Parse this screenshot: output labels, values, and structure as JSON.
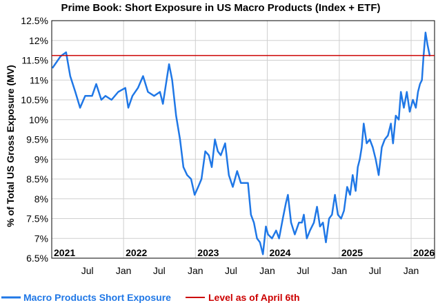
{
  "chart_data": {
    "type": "line",
    "title": "Prime Book: Short Exposure in US Macro Products (Index + ETF)",
    "ylabel": "% of Total US Gross Exposure (MV)",
    "xlabel": "",
    "ylim": [
      6.5,
      12.5
    ],
    "xlim": [
      "2021-01-01",
      "2026-04-30"
    ],
    "y_ticks": [
      "6.5%",
      "7%",
      "7.5%",
      "8%",
      "8.5%",
      "9%",
      "9.5%",
      "10%",
      "10.5%",
      "11%",
      "11.5%",
      "12%",
      "12.5%"
    ],
    "year_labels": [
      "2021",
      "2022",
      "2023",
      "2024",
      "2025",
      "2026"
    ],
    "month_labels": [
      "Jul",
      "Jan",
      "Jul",
      "Jan",
      "Jul",
      "Jan",
      "Jul",
      "Jan",
      "Jul",
      "Jan"
    ],
    "grid": true,
    "legend_position": "bottom",
    "series": [
      {
        "name": "Macro Products Short Exposure",
        "color": "#1f77e6",
        "points": [
          [
            "2021-01-04",
            11.3
          ],
          [
            "2021-02-15",
            11.6
          ],
          [
            "2021-03-15",
            11.7
          ],
          [
            "2021-04-05",
            11.1
          ],
          [
            "2021-05-01",
            10.7
          ],
          [
            "2021-05-25",
            10.3
          ],
          [
            "2021-06-20",
            10.6
          ],
          [
            "2021-07-25",
            10.6
          ],
          [
            "2021-08-15",
            10.9
          ],
          [
            "2021-09-10",
            10.5
          ],
          [
            "2021-10-01",
            10.6
          ],
          [
            "2021-11-01",
            10.5
          ],
          [
            "2021-12-05",
            10.7
          ],
          [
            "2022-01-10",
            10.8
          ],
          [
            "2022-01-25",
            10.3
          ],
          [
            "2022-02-15",
            10.6
          ],
          [
            "2022-03-15",
            10.8
          ],
          [
            "2022-04-10",
            11.1
          ],
          [
            "2022-05-05",
            10.7
          ],
          [
            "2022-06-05",
            10.6
          ],
          [
            "2022-07-05",
            10.7
          ],
          [
            "2022-07-20",
            10.4
          ],
          [
            "2022-08-20",
            11.4
          ],
          [
            "2022-09-05",
            11.0
          ],
          [
            "2022-09-25",
            10.1
          ],
          [
            "2022-10-15",
            9.5
          ],
          [
            "2022-11-01",
            8.8
          ],
          [
            "2022-11-20",
            8.6
          ],
          [
            "2022-12-10",
            8.5
          ],
          [
            "2022-12-28",
            8.1
          ],
          [
            "2023-01-15",
            8.3
          ],
          [
            "2023-02-01",
            8.5
          ],
          [
            "2023-02-20",
            9.2
          ],
          [
            "2023-03-10",
            9.1
          ],
          [
            "2023-03-25",
            8.8
          ],
          [
            "2023-04-10",
            9.5
          ],
          [
            "2023-04-25",
            9.2
          ],
          [
            "2023-05-10",
            9.1
          ],
          [
            "2023-06-01",
            9.4
          ],
          [
            "2023-06-20",
            8.6
          ],
          [
            "2023-07-10",
            8.3
          ],
          [
            "2023-08-01",
            8.7
          ],
          [
            "2023-08-20",
            8.4
          ],
          [
            "2023-09-05",
            8.4
          ],
          [
            "2023-09-25",
            8.4
          ],
          [
            "2023-10-10",
            7.6
          ],
          [
            "2023-10-25",
            7.4
          ],
          [
            "2023-11-10",
            7.0
          ],
          [
            "2023-11-25",
            6.9
          ],
          [
            "2023-12-10",
            6.6
          ],
          [
            "2023-12-25",
            7.3
          ],
          [
            "2024-01-05",
            7.1
          ],
          [
            "2024-01-25",
            7.0
          ],
          [
            "2024-02-15",
            7.2
          ],
          [
            "2024-03-01",
            7.0
          ],
          [
            "2024-03-20",
            7.5
          ],
          [
            "2024-04-05",
            7.9
          ],
          [
            "2024-04-15",
            8.1
          ],
          [
            "2024-05-01",
            7.4
          ],
          [
            "2024-05-20",
            7.1
          ],
          [
            "2024-06-10",
            7.4
          ],
          [
            "2024-06-25",
            7.4
          ],
          [
            "2024-07-05",
            7.6
          ],
          [
            "2024-07-20",
            7.0
          ],
          [
            "2024-08-05",
            7.2
          ],
          [
            "2024-08-25",
            7.4
          ],
          [
            "2024-09-10",
            7.8
          ],
          [
            "2024-09-25",
            7.3
          ],
          [
            "2024-10-10",
            7.4
          ],
          [
            "2024-10-25",
            6.9
          ],
          [
            "2024-11-10",
            7.5
          ],
          [
            "2024-11-25",
            7.6
          ],
          [
            "2024-12-10",
            8.1
          ],
          [
            "2024-12-25",
            7.6
          ],
          [
            "2025-01-10",
            7.5
          ],
          [
            "2025-01-25",
            7.7
          ],
          [
            "2025-02-10",
            8.3
          ],
          [
            "2025-02-25",
            8.1
          ],
          [
            "2025-03-10",
            8.6
          ],
          [
            "2025-03-25",
            8.2
          ],
          [
            "2025-04-05",
            8.8
          ],
          [
            "2025-04-15",
            9.0
          ],
          [
            "2025-04-25",
            9.3
          ],
          [
            "2025-05-05",
            9.9
          ],
          [
            "2025-05-20",
            9.4
          ],
          [
            "2025-06-05",
            9.5
          ],
          [
            "2025-06-20",
            9.3
          ],
          [
            "2025-07-05",
            9.0
          ],
          [
            "2025-07-20",
            8.6
          ],
          [
            "2025-08-05",
            9.3
          ],
          [
            "2025-08-20",
            9.5
          ],
          [
            "2025-09-05",
            9.6
          ],
          [
            "2025-09-20",
            9.9
          ],
          [
            "2025-10-01",
            9.4
          ],
          [
            "2025-10-15",
            10.1
          ],
          [
            "2025-10-30",
            10.0
          ],
          [
            "2025-11-10",
            10.7
          ],
          [
            "2025-11-25",
            10.3
          ],
          [
            "2025-12-10",
            10.7
          ],
          [
            "2025-12-25",
            10.2
          ],
          [
            "2026-01-10",
            10.5
          ],
          [
            "2026-01-25",
            10.3
          ],
          [
            "2026-02-05",
            10.7
          ],
          [
            "2026-02-15",
            10.9
          ],
          [
            "2026-02-25",
            11.0
          ],
          [
            "2026-03-05",
            11.6
          ],
          [
            "2026-03-15",
            12.2
          ],
          [
            "2026-03-25",
            11.9
          ],
          [
            "2026-04-06",
            11.6
          ]
        ]
      },
      {
        "name": "Level as of April 6th",
        "color": "#cc0000",
        "value": 11.62
      }
    ]
  }
}
